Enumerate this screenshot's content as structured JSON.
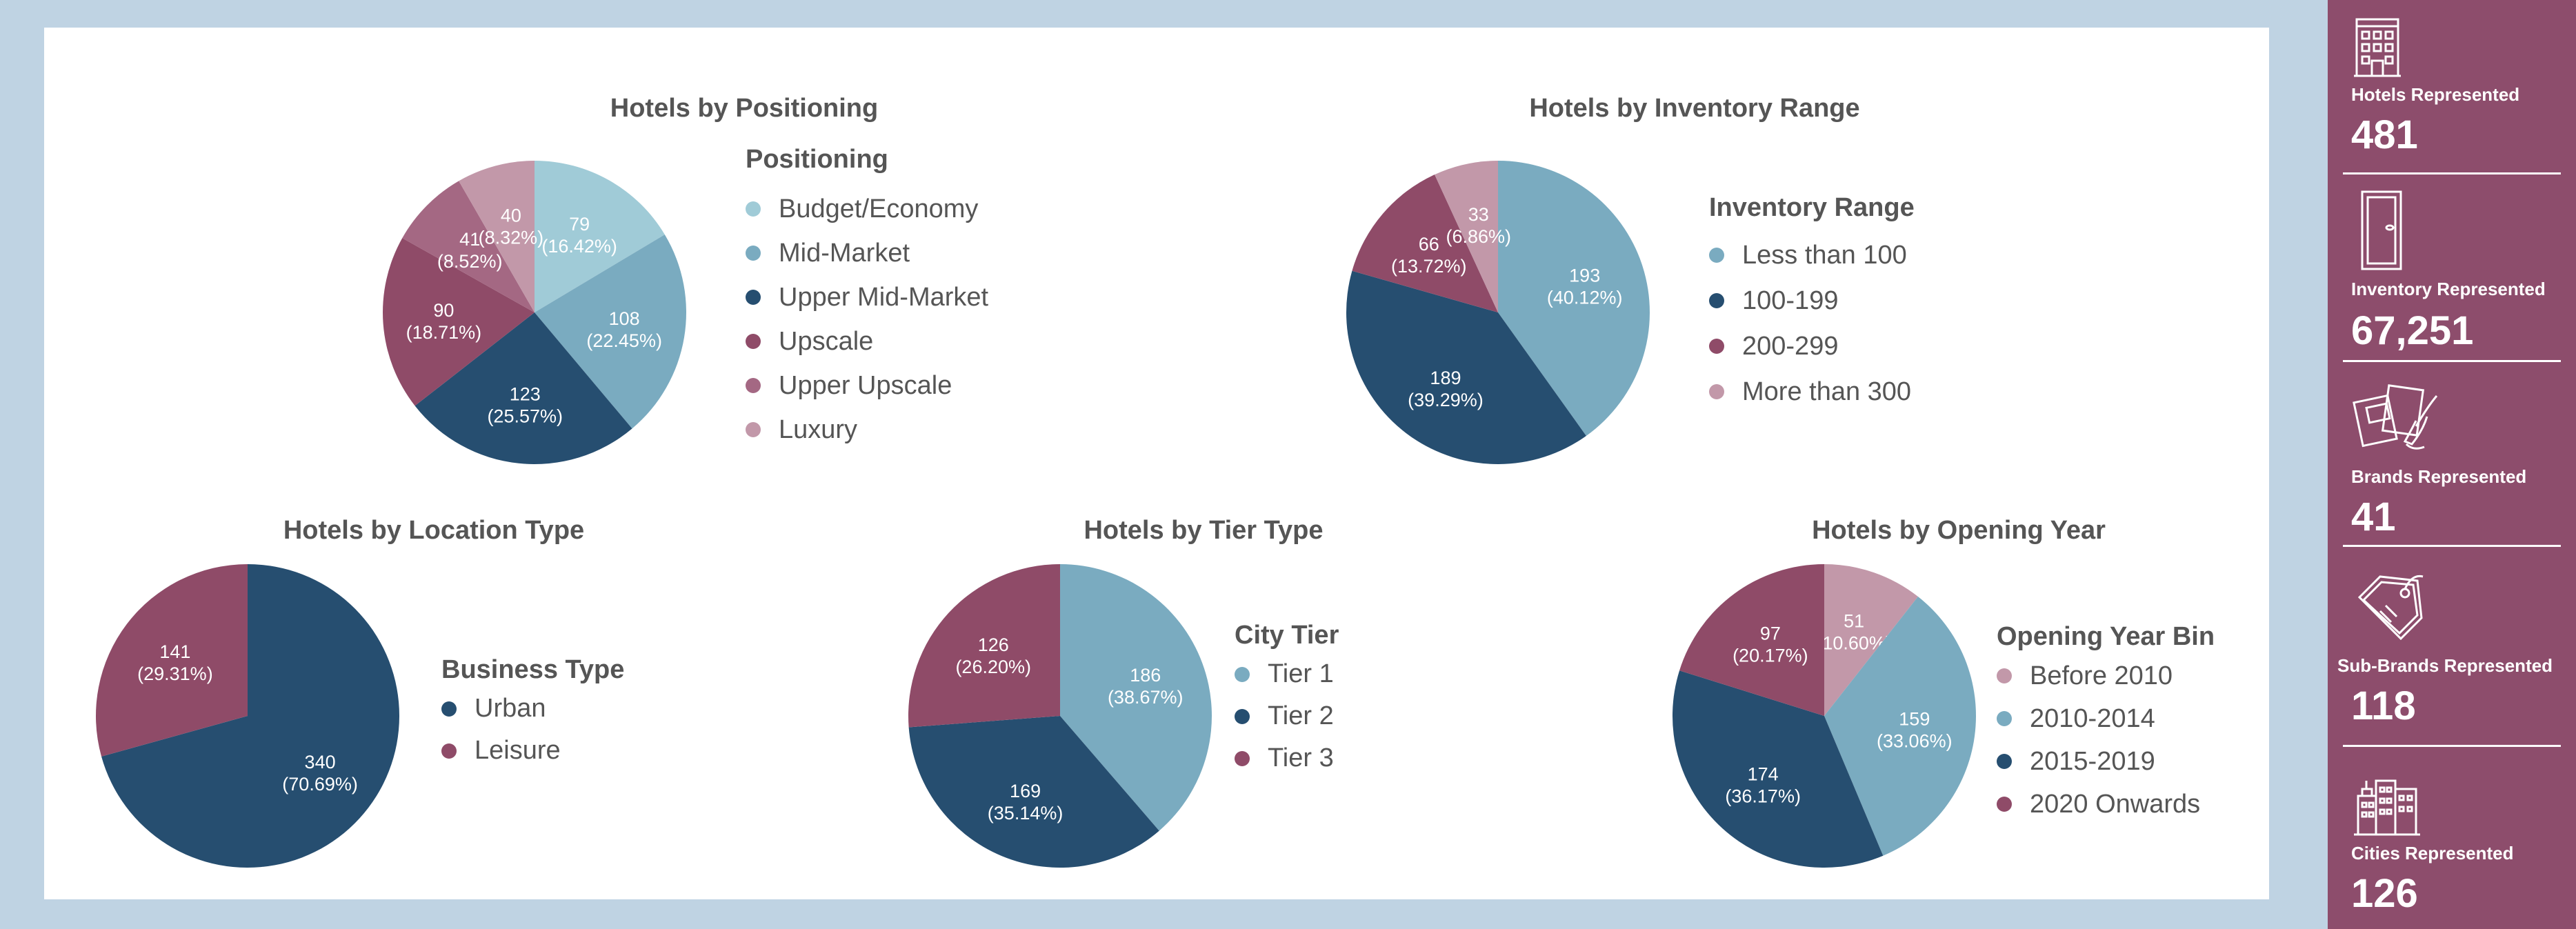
{
  "colors": {
    "navy": "#264e70",
    "steel_blue": "#7aabc0",
    "light_blue": "#a0cbd7",
    "plum": "#8f4b68",
    "mauve": "#a46883",
    "light_mauve": "#c298a9",
    "sidebar_bg": "#8d4d6c",
    "page_bg": "#bfd3e3"
  },
  "chart_data": [
    {
      "type": "pie",
      "title": "Hotels by Positioning",
      "legend_title": "Positioning",
      "categories": [
        "Budget/Economy",
        "Mid-Market",
        "Upper Mid-Market",
        "Upscale",
        "Upper Upscale",
        "Luxury"
      ],
      "values": [
        79,
        108,
        123,
        90,
        41,
        40
      ],
      "value_labels": [
        "79",
        "108",
        "123",
        "90",
        "41",
        "40"
      ],
      "percent_labels": [
        "(16.42%)",
        "(22.45%)",
        "(25.57%)",
        "(18.71%)",
        "(8.52%)",
        "(8.32%)"
      ],
      "colors": [
        "#a0cbd7",
        "#7aabc0",
        "#264e70",
        "#8f4b68",
        "#a46883",
        "#c298a9"
      ],
      "legend_placement": "right"
    },
    {
      "type": "pie",
      "title": "Hotels by Inventory Range",
      "legend_title": "Inventory Range",
      "categories": [
        "Less than 100",
        "100-199",
        "200-299",
        "More than 300"
      ],
      "values": [
        193,
        189,
        66,
        33
      ],
      "value_labels": [
        "193",
        "189",
        "66",
        "33"
      ],
      "percent_labels": [
        "(40.12%)",
        "(39.29%)",
        "(13.72%)",
        "(6.86%)"
      ],
      "colors": [
        "#7aabc0",
        "#264e70",
        "#8f4b68",
        "#c298a9"
      ],
      "legend_placement": "right"
    },
    {
      "type": "pie",
      "title": "Hotels by Location Type",
      "legend_title": "Business Type",
      "categories": [
        "Urban",
        "Leisure"
      ],
      "values": [
        340,
        141
      ],
      "value_labels": [
        "340",
        "141"
      ],
      "percent_labels": [
        "(70.69%)",
        "(29.31%)"
      ],
      "colors": [
        "#264e70",
        "#8f4b68"
      ],
      "legend_placement": "right"
    },
    {
      "type": "pie",
      "title": "Hotels by Tier Type",
      "legend_title": "City Tier",
      "categories": [
        "Tier 1",
        "Tier 2",
        "Tier 3"
      ],
      "values": [
        186,
        169,
        126
      ],
      "value_labels": [
        "186",
        "169",
        "126"
      ],
      "percent_labels": [
        "(38.67%)",
        "(35.14%)",
        "(26.20%)"
      ],
      "colors": [
        "#7aabc0",
        "#264e70",
        "#8f4b68"
      ],
      "legend_placement": "right"
    },
    {
      "type": "pie",
      "title": "Hotels by Opening Year",
      "legend_title": "Opening Year Bin",
      "categories": [
        "Before 2010",
        "2010-2014",
        "2015-2019",
        "2020 Onwards"
      ],
      "values": [
        51,
        159,
        174,
        97
      ],
      "value_labels": [
        "51",
        "159",
        "174",
        "97"
      ],
      "percent_labels": [
        "(10.60%)",
        "(33.06%)",
        "(36.17%)",
        "(20.17%)"
      ],
      "colors": [
        "#c298a9",
        "#7aabc0",
        "#264e70",
        "#8f4b68"
      ],
      "legend_placement": "right"
    }
  ],
  "sidebar": {
    "kpis": [
      {
        "label": "Hotels Represented",
        "value": "481",
        "icon": "hotel-building-icon"
      },
      {
        "label": "Inventory Represented",
        "value": "67,251",
        "icon": "door-icon"
      },
      {
        "label": "Brands Represented",
        "value": "41",
        "icon": "brand-cards-icon"
      },
      {
        "label": "Sub-Brands Represented",
        "value": "118",
        "icon": "price-tag-icon"
      },
      {
        "label": "Cities Represented",
        "value": "126",
        "icon": "city-buildings-icon"
      }
    ]
  }
}
